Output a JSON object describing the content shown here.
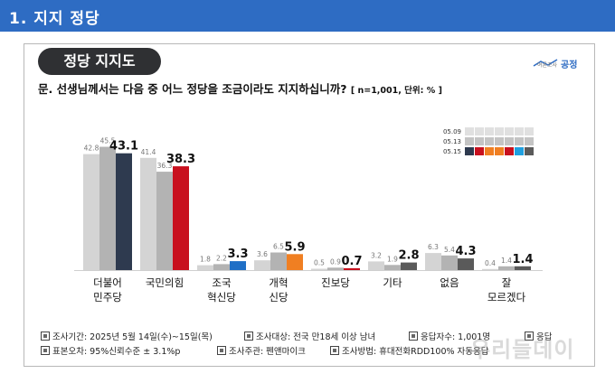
{
  "header": {
    "title": "1. 지지 정당"
  },
  "badge": {
    "label": "정당 지지도"
  },
  "logo": {
    "small": "여론조사",
    "main": "공정"
  },
  "question": {
    "text": "문. 선생님께서는 다음 중 어느 정당을 조금이라도 지지하십니까?",
    "unit": "[ n=1,001, 단위: % ]"
  },
  "colors": {
    "header": "#2e6cc3",
    "s1": "#d4d4d4",
    "s2": "#b3b3b3"
  },
  "chart_data": {
    "type": "bar",
    "categories": [
      {
        "line1": "더불어",
        "line2": "민주당"
      },
      {
        "line1": "국민의힘",
        "line2": ""
      },
      {
        "line1": "조국",
        "line2": "혁신당"
      },
      {
        "line1": "개혁",
        "line2": "신당"
      },
      {
        "line1": "진보당",
        "line2": ""
      },
      {
        "line1": "기타",
        "line2": ""
      },
      {
        "line1": "없음",
        "line2": ""
      },
      {
        "line1": "잘",
        "line2": "모르겠다"
      }
    ],
    "series": [
      {
        "name": "05.09",
        "values": [
          42.8,
          41.4,
          1.8,
          3.6,
          0.5,
          3.2,
          6.3,
          0.4
        ]
      },
      {
        "name": "05.13",
        "values": [
          45.5,
          36.3,
          2.2,
          6.5,
          0.9,
          1.9,
          5.4,
          1.4
        ]
      },
      {
        "name": "05.15",
        "values": [
          43.1,
          38.3,
          3.3,
          5.9,
          0.7,
          2.8,
          4.3,
          1.4
        ]
      }
    ],
    "latest_colors": [
      "#2e3a4f",
      "#c8101e",
      "#1f6fc6",
      "#f07f22",
      "#c8101e",
      "#5a5a5a",
      "#5a5a5a",
      "#5a5a5a"
    ],
    "legend_swatch_colors": [
      "#2e3a4f",
      "#c8101e",
      "#f07f22",
      "#f07f22",
      "#c8101e",
      "#1fa0e0",
      "#5a5a5a"
    ],
    "ylim": [
      0,
      50
    ]
  },
  "footer": {
    "period": "조사기간: 2025년 5월 14일(수)~15일(목)",
    "target": "조사대상: 전국 만18세 이상 남녀",
    "respondents": "응답자수: 1,001명",
    "extra": "응답",
    "error": "표본오차: 95%신뢰수준 ± 3.1%p",
    "host": "조사주관: 펜앤마이크",
    "method": "조사방법: 휴대전화RDD100% 자동응답"
  },
  "watermark": "우리들데이"
}
